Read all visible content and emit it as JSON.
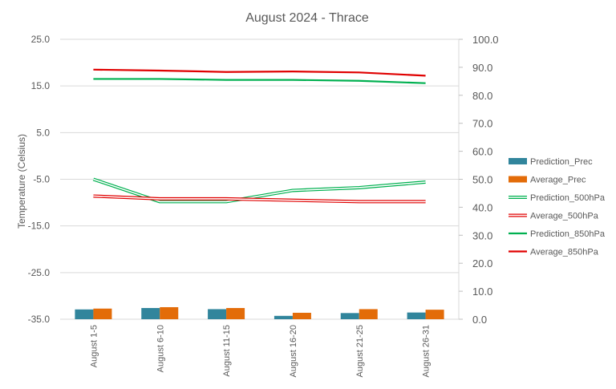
{
  "chart_data": {
    "type": "bar+line",
    "title": "August 2024 - Thrace",
    "ylabel": "Temperature (Celsius)",
    "y2label": "",
    "categories": [
      "August 1-5",
      "August 6-10",
      "August 11-15",
      "August 16-20",
      "August 21-25",
      "August 26-31"
    ],
    "ylim": [
      -35,
      25
    ],
    "yticks": [
      "25.0",
      "15.0",
      "5.0",
      "-5.0",
      "-15.0",
      "-25.0",
      "-35.0"
    ],
    "ytick_values": [
      25,
      15,
      5,
      -5,
      -15,
      -25,
      -35
    ],
    "y2lim": [
      0,
      100
    ],
    "y2ticks": [
      "100.0",
      "90.0",
      "80.0",
      "70.0",
      "60.0",
      "50.0",
      "40.0",
      "30.0",
      "20.0",
      "10.0",
      "0.0"
    ],
    "y2tick_values": [
      100,
      90,
      80,
      70,
      60,
      50,
      40,
      30,
      20,
      10,
      0
    ],
    "grid": true,
    "legend_position": "right",
    "bar_series": [
      {
        "name": "Prediction_Prec",
        "axis": "right",
        "color": "#31859c",
        "values": [
          3.5,
          4.0,
          3.6,
          1.2,
          2.2,
          2.4
        ]
      },
      {
        "name": "Average_Prec",
        "axis": "right",
        "color": "#e36c09",
        "values": [
          3.8,
          4.3,
          4.0,
          2.3,
          3.6,
          3.4
        ]
      }
    ],
    "line_series": [
      {
        "name": "Prediction_500hPa",
        "axis": "right",
        "color": "#00b050",
        "style": "double",
        "values": [
          50.0,
          42.0,
          42.0,
          46.0,
          47.0,
          49.0
        ]
      },
      {
        "name": "Average_500hPa",
        "axis": "right",
        "color": "#e00000",
        "style": "double",
        "values": [
          44.0,
          43.0,
          43.0,
          42.5,
          42.0,
          42.0
        ]
      },
      {
        "name": "Prediction_850hPa",
        "axis": "left",
        "color": "#00b050",
        "style": "solid",
        "values": [
          16.5,
          16.5,
          16.3,
          16.3,
          16.1,
          15.6
        ]
      },
      {
        "name": "Average_850hPa",
        "axis": "left",
        "color": "#e00000",
        "style": "solid",
        "values": [
          18.5,
          18.3,
          18.0,
          18.1,
          17.9,
          17.2
        ]
      }
    ]
  }
}
